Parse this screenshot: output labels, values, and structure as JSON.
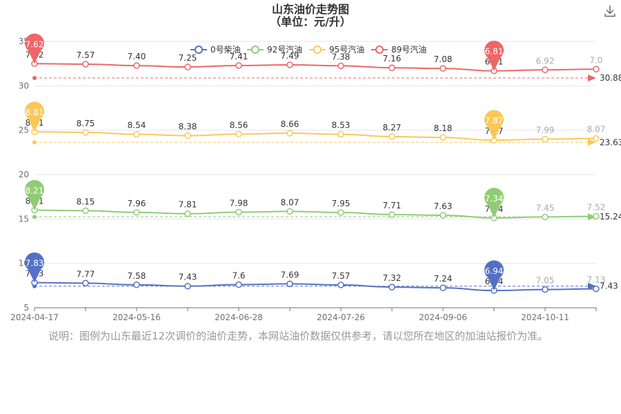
{
  "title": {
    "main": "山东油价走势图",
    "sub": "（单位：元/升）"
  },
  "note": "说明：图例为山东最近12次调价的油价走势，本网站油价数据仅供参考，请以您所在地区的加油站报价为准。",
  "icons": {
    "download": "download-icon"
  },
  "chart_data": {
    "type": "line",
    "xlabel": "",
    "ylabel": "",
    "ylim": [
      5,
      35
    ],
    "yticks": [
      "5",
      "10",
      "15",
      "20",
      "25",
      "30",
      "35"
    ],
    "xtick_labels": [
      "2024-04-17",
      "2024-05-16",
      "2024-06-28",
      "2024-07-26",
      "2024-09-06",
      "2024-10-11"
    ],
    "xtick_positions": [
      0,
      2,
      4,
      6,
      8,
      10
    ],
    "grid": true,
    "legend_position": "top",
    "n_points": 12,
    "series": [
      {
        "name": "0号柴油",
        "color": "#5470c6",
        "offset": 0,
        "values": [
          7.83,
          7.77,
          7.58,
          7.43,
          7.6,
          7.69,
          7.57,
          7.32,
          7.24,
          6.94,
          7.05,
          7.13
        ],
        "labels": [
          "7.83",
          "7.77",
          "7.58",
          "7.43",
          "7.6",
          "7.69",
          "7.57",
          "7.32",
          "7.24",
          "6.94",
          "7.05",
          "7.13"
        ],
        "max": {
          "index": 0,
          "label": "7.83"
        },
        "min": {
          "index": 9,
          "label": "6.94"
        },
        "avg": {
          "value": 7.43,
          "label": "7.43"
        }
      },
      {
        "name": "92号汽油",
        "color": "#91cc75",
        "offset": 7.78,
        "values": [
          8.21,
          8.15,
          7.96,
          7.81,
          7.98,
          8.07,
          7.95,
          7.71,
          7.63,
          7.34,
          7.45,
          7.52
        ],
        "labels": [
          "8.21",
          "8.15",
          "7.96",
          "7.81",
          "7.98",
          "8.07",
          "7.95",
          "7.71",
          "7.63",
          "7.34",
          "7.45",
          "7.52"
        ],
        "max": {
          "index": 0,
          "label": "8.21"
        },
        "min": {
          "index": 9,
          "label": "7.34"
        },
        "avg": {
          "value": 15.24,
          "label": "15.24"
        }
      },
      {
        "name": "95号汽油",
        "color": "#fac858",
        "offset": 16.0,
        "values": [
          8.81,
          8.75,
          8.54,
          8.38,
          8.56,
          8.66,
          8.53,
          8.27,
          8.18,
          7.87,
          7.99,
          8.07
        ],
        "labels": [
          "8.81",
          "8.75",
          "8.54",
          "8.38",
          "8.56",
          "8.66",
          "8.53",
          "8.27",
          "8.18",
          "7.87",
          "7.99",
          "8.07"
        ],
        "max": {
          "index": 0,
          "label": "8.81"
        },
        "min": {
          "index": 9,
          "label": "7.87"
        },
        "avg": {
          "value": 23.63,
          "label": "23.63"
        }
      },
      {
        "name": "89号汽油",
        "color": "#ee6666",
        "offset": 24.87,
        "values": [
          7.62,
          7.57,
          7.4,
          7.25,
          7.41,
          7.49,
          7.38,
          7.16,
          7.08,
          6.81,
          6.92,
          7.0
        ],
        "labels": [
          "7.62",
          "7.57",
          "7.40",
          "7.25",
          "7.41",
          "7.49",
          "7.38",
          "7.16",
          "7.08",
          "6.81",
          "6.92",
          "7.0"
        ],
        "max": {
          "index": 0,
          "label": "7.62"
        },
        "min": {
          "index": 9,
          "label": "6.81"
        },
        "avg": {
          "value": 30.88,
          "label": "30.88"
        }
      }
    ]
  }
}
